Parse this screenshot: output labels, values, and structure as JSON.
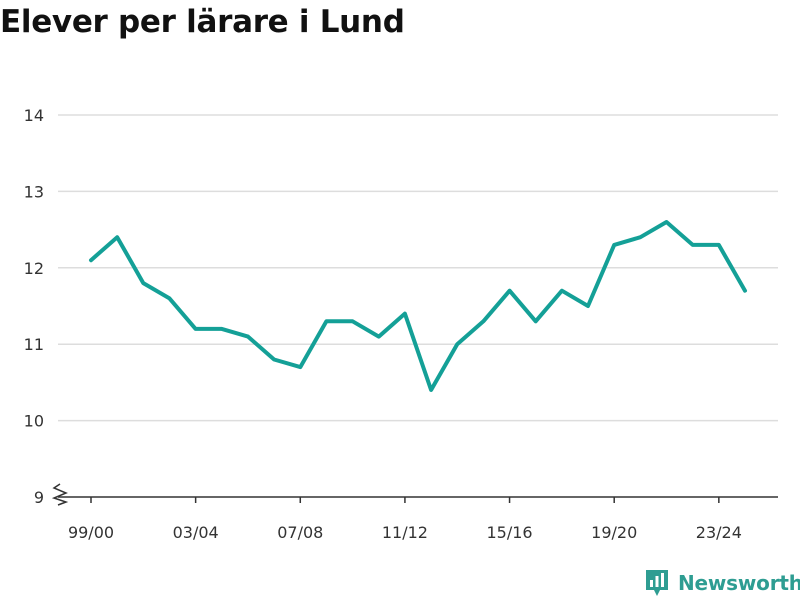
{
  "colors": {
    "line": "#14a097",
    "grid": "#dddddd",
    "axis": "#333333",
    "brand": "#2e9d92"
  },
  "brand": {
    "name": "Newsworthy",
    "logo_icon": "bar-chart-logo-icon"
  },
  "chart_data": {
    "type": "line",
    "title": "Elever per lärare i Lund",
    "xlabel": "",
    "ylabel": "",
    "ylim": [
      9,
      14
    ],
    "yticks": [
      9,
      10,
      11,
      12,
      13,
      14
    ],
    "y_axis_break": true,
    "grid": true,
    "legend": "none",
    "x": [
      "99/00",
      "00/01",
      "01/02",
      "02/03",
      "03/04",
      "04/05",
      "05/06",
      "06/07",
      "07/08",
      "08/09",
      "09/10",
      "10/11",
      "11/12",
      "12/13",
      "13/14",
      "14/15",
      "15/16",
      "16/17",
      "17/18",
      "18/19",
      "19/20",
      "20/21",
      "21/22",
      "22/23",
      "23/24",
      "24/25"
    ],
    "xticks": [
      "99/00",
      "03/04",
      "07/08",
      "11/12",
      "15/16",
      "19/20",
      "23/24"
    ],
    "series": [
      {
        "values": [
          12.1,
          12.4,
          11.8,
          11.6,
          11.2,
          11.2,
          11.1,
          10.8,
          10.7,
          11.3,
          11.3,
          11.1,
          11.4,
          10.4,
          11.0,
          11.3,
          11.7,
          11.3,
          11.7,
          11.5,
          12.3,
          12.4,
          12.6,
          12.3,
          12.3,
          11.7
        ]
      }
    ]
  }
}
